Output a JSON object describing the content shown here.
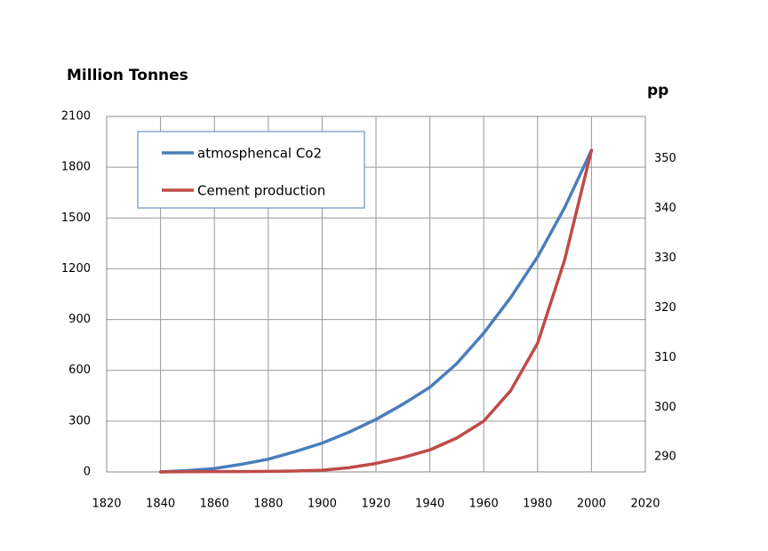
{
  "chart_data": {
    "type": "line",
    "title": "Million Tonnes",
    "y2label": "pp",
    "x": [
      1840,
      1850,
      1860,
      1870,
      1880,
      1890,
      1900,
      1910,
      1920,
      1930,
      1940,
      1950,
      1960,
      1970,
      1980,
      1990,
      2000
    ],
    "series": [
      {
        "name": "atmosphencal Co2",
        "color": "#4a7ebb",
        "values": [
          0,
          8,
          20,
          45,
          75,
          120,
          170,
          235,
          310,
          400,
          500,
          640,
          820,
          1030,
          1270,
          1560,
          1900
        ]
      },
      {
        "name": "Cement production",
        "color": "#be4b48",
        "values": [
          0,
          1,
          2,
          2,
          3,
          5,
          10,
          25,
          50,
          85,
          130,
          200,
          300,
          480,
          760,
          1250,
          1900
        ]
      }
    ],
    "xlim": [
      1820,
      2020
    ],
    "xticks": [
      1820,
      1840,
      1860,
      1880,
      1900,
      1920,
      1940,
      1960,
      1980,
      2000,
      2020
    ],
    "ylim": [
      0,
      2100
    ],
    "yticks": [
      0,
      300,
      600,
      900,
      1200,
      1500,
      1800,
      2100
    ],
    "y2lim": [
      287,
      358.5
    ],
    "y2ticks": [
      290,
      300,
      310,
      320,
      330,
      340,
      350
    ],
    "grid": true,
    "legend": "upper-left"
  }
}
